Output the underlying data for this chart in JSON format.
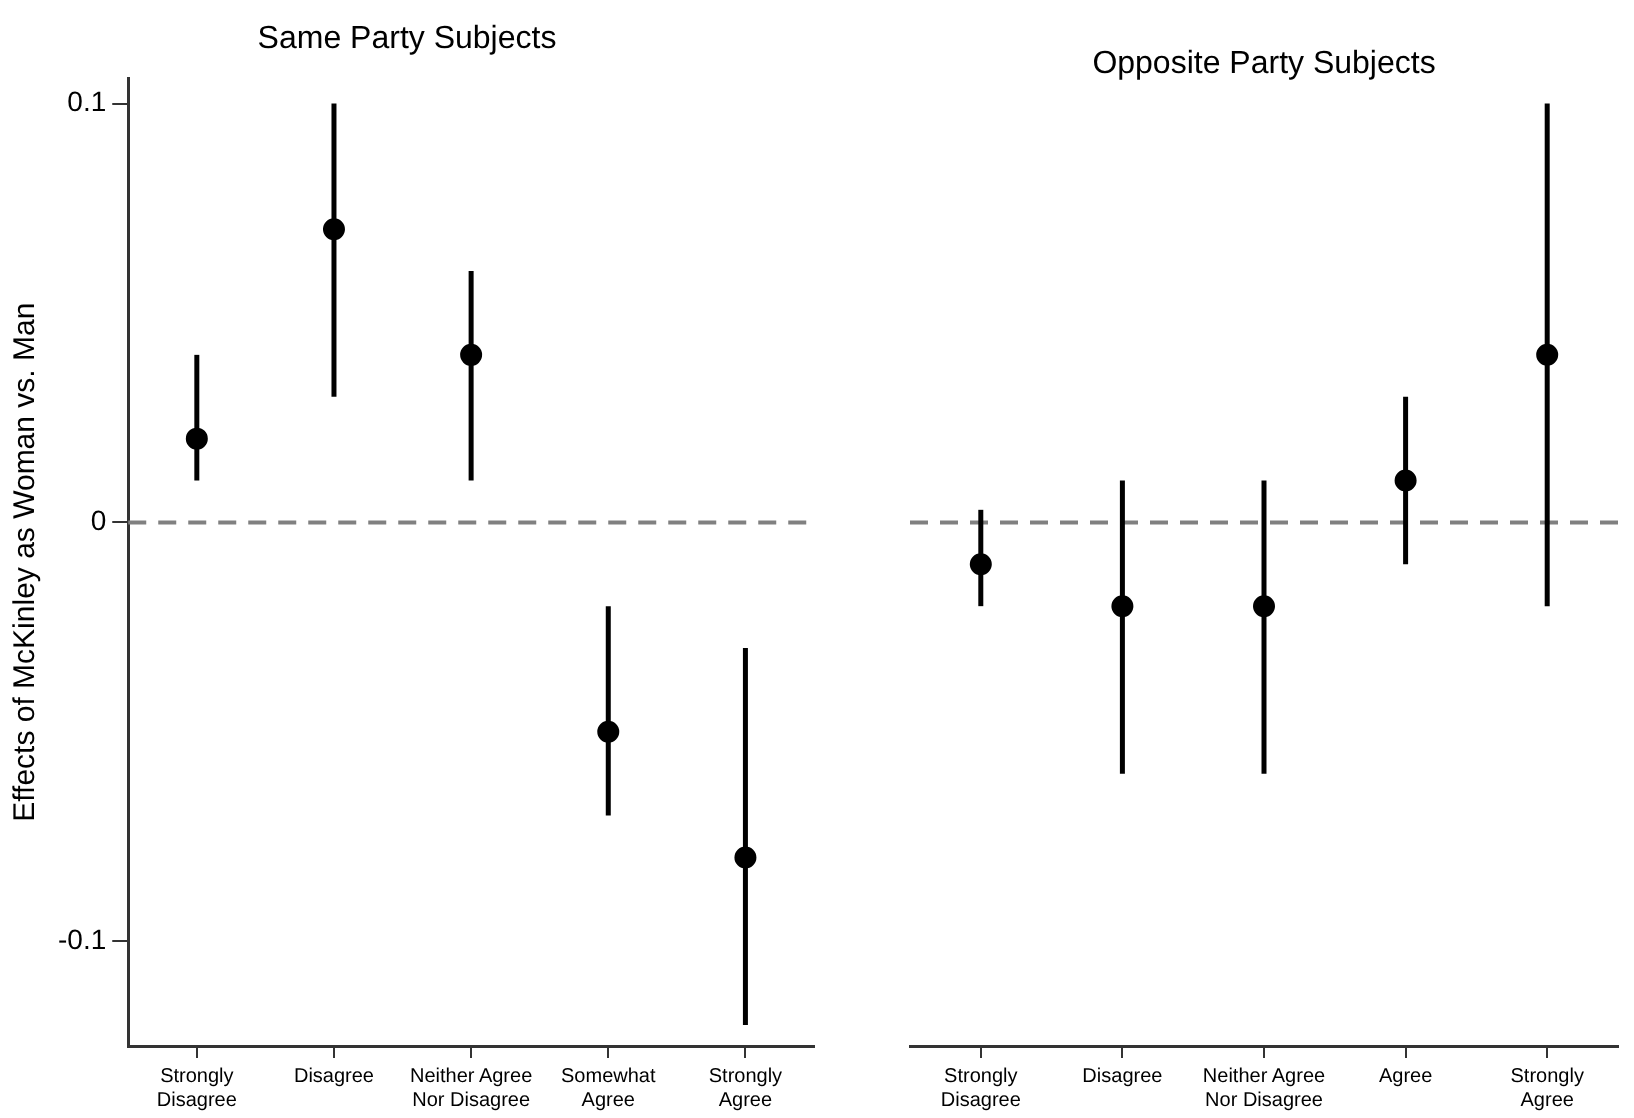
{
  "chart_data": [
    {
      "type": "scatter",
      "title": "Same Party Subjects",
      "ylabel": "Effects of McKinley as Woman vs. Man",
      "categories": [
        "Strongly Disagree",
        "Disagree",
        "Neither Agree Nor Disagree",
        "Somewhat Agree",
        "Strongly Agree"
      ],
      "values": [
        0.02,
        0.07,
        0.04,
        -0.05,
        -0.08
      ],
      "errors": [
        [
          0.01,
          0.04
        ],
        [
          0.03,
          0.1
        ],
        [
          0.01,
          0.06
        ],
        [
          -0.07,
          -0.02
        ],
        [
          -0.12,
          -0.03
        ]
      ],
      "color": "#000000",
      "marker": "circle",
      "ylim": [
        -0.125,
        0.106
      ],
      "yticks": [
        -0.1,
        0,
        0.1
      ],
      "grid": false,
      "legend": false,
      "ref_lines": [
        {
          "axis": "y",
          "value": 0,
          "color": "#808080",
          "line_style": "dashed"
        }
      ]
    },
    {
      "type": "scatter",
      "title": "Opposite Party Subjects",
      "categories": [
        "Strongly Disagree",
        "Disagree",
        "Neither Agree Nor Disagree",
        "Agree",
        "Strongly Agree"
      ],
      "values": [
        -0.01,
        -0.02,
        -0.02,
        0.01,
        0.04
      ],
      "errors": [
        [
          -0.02,
          0.003
        ],
        [
          -0.06,
          0.01
        ],
        [
          -0.06,
          0.01
        ],
        [
          -0.01,
          0.03
        ],
        [
          -0.02,
          0.1
        ]
      ],
      "color": "#000000",
      "marker": "circle",
      "ylim": [
        -0.125,
        0.1
      ],
      "yticks": [
        -0.1,
        0,
        0.1
      ],
      "tick_labels": "x",
      "grid": false,
      "legend": false,
      "ref_lines": [
        {
          "axis": "y",
          "value": 0,
          "color": "#808080",
          "line_style": "dashed"
        }
      ]
    }
  ]
}
